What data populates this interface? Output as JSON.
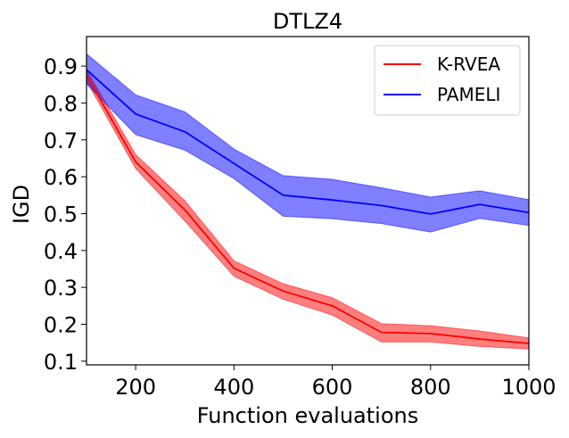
{
  "chart_data": {
    "type": "line",
    "title": "DTLZ4",
    "xlabel": "Function evaluations",
    "ylabel": "IGD",
    "xlim": [
      100,
      1000
    ],
    "ylim": [
      0.09,
      0.98
    ],
    "x_ticks": [
      200,
      400,
      600,
      800,
      1000
    ],
    "y_ticks": [
      0.1,
      0.2,
      0.3,
      0.4,
      0.5,
      0.6,
      0.7,
      0.8,
      0.9
    ],
    "grid": false,
    "legend_position": "top-right",
    "x": [
      100,
      200,
      300,
      400,
      500,
      600,
      700,
      800,
      900,
      1000
    ],
    "series": [
      {
        "name": "K-RVEA",
        "color": "#ff0000",
        "band_color": "#ff0000",
        "values": [
          0.875,
          0.64,
          0.51,
          0.352,
          0.29,
          0.25,
          0.178,
          0.175,
          0.16,
          0.148
        ],
        "lower": [
          0.86,
          0.622,
          0.48,
          0.33,
          0.268,
          0.225,
          0.152,
          0.152,
          0.14,
          0.133
        ],
        "upper": [
          0.89,
          0.66,
          0.535,
          0.372,
          0.31,
          0.272,
          0.202,
          0.196,
          0.182,
          0.163
        ]
      },
      {
        "name": "PAMELI",
        "color": "#0000ff",
        "band_color": "#0000ff",
        "values": [
          0.89,
          0.77,
          0.722,
          0.636,
          0.55,
          0.537,
          0.522,
          0.499,
          0.525,
          0.503
        ],
        "lower": [
          0.852,
          0.714,
          0.672,
          0.595,
          0.493,
          0.486,
          0.473,
          0.45,
          0.487,
          0.468
        ],
        "upper": [
          0.933,
          0.822,
          0.776,
          0.675,
          0.603,
          0.593,
          0.57,
          0.545,
          0.562,
          0.538
        ]
      }
    ]
  }
}
